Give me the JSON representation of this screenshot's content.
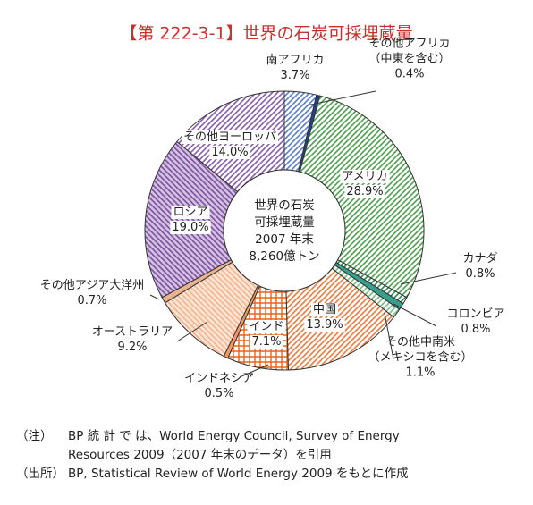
{
  "chart_data": {
    "type": "donut",
    "title": "【第 222-3-1】世界の石炭可採埋蔵量",
    "center_label": [
      "世界の石炭",
      "可採埋蔵量",
      "2007 年末",
      "8,260億トン"
    ],
    "categories": [
      [
        "南アフリカ"
      ],
      [
        "その他アフリカ",
        "（中東を含む）"
      ],
      [
        "アメリカ"
      ],
      [
        "カナダ"
      ],
      [
        "コロンビア"
      ],
      [
        "その他中南米",
        "（メキシコを含む）"
      ],
      [
        "中国"
      ],
      [
        "インド"
      ],
      [
        "インドネシア"
      ],
      [
        "オーストラリア"
      ],
      [
        "その他アジア大洋州"
      ],
      [
        "ロシア"
      ],
      [
        "その他ヨーロッパ"
      ]
    ],
    "values": [
      3.7,
      0.4,
      28.9,
      0.8,
      0.8,
      1.1,
      13.9,
      7.1,
      0.5,
      9.2,
      0.7,
      19.0,
      14.0
    ],
    "value_labels": [
      "3.7%",
      "0.4%",
      "28.9%",
      "0.8%",
      "0.8%",
      "1.1%",
      "13.9%",
      "7.1%",
      "0.5%",
      "9.2%",
      "0.7%",
      "19.0%",
      "14.0%"
    ],
    "colors": [
      "#5b7fd0",
      "#23408f",
      "#4ea24e",
      "#2e8a52",
      "#3a9e8c",
      "#78bf86",
      "#f07a3c",
      "#e8641e",
      "#ef9a66",
      "#f3b48c",
      "#e9b391",
      "#7e4fa3",
      "#8a5cb0"
    ],
    "patterns": [
      "hatch",
      "solid",
      "hatch",
      "hatch",
      "solid",
      "hatch",
      "hatch",
      "grid",
      "solid",
      "hatch-rev",
      "solid",
      "hatch-rev",
      "hatch"
    ],
    "notes": [
      {
        "label": "（注）",
        "lines": [
          "BP 統 計 で は、World Energy Council, Survey of Energy",
          "Resources 2009（2007 年末のデータ）を引用"
        ]
      },
      {
        "label": "（出所）",
        "lines": [
          "BP, Statistical Review of World Energy 2009 をもとに作成"
        ]
      }
    ]
  }
}
